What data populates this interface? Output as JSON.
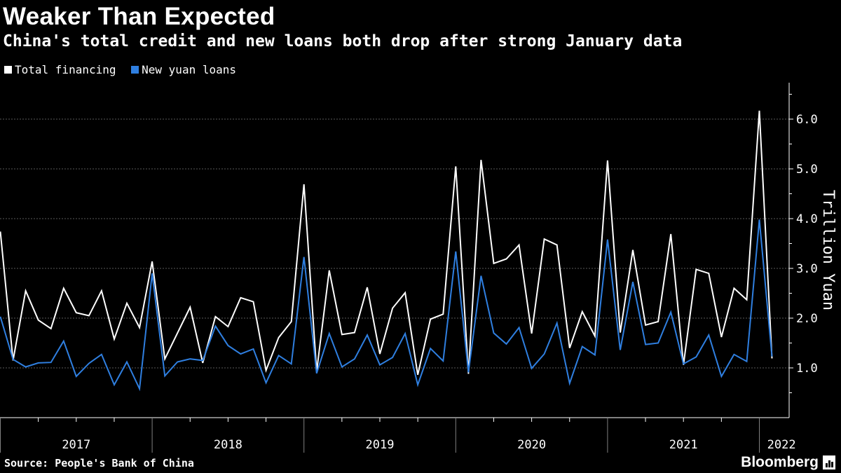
{
  "header": {
    "title": "Weaker Than Expected",
    "subtitle": "China's total credit and new loans both drop after strong January data"
  },
  "legend": {
    "items": [
      {
        "label": "Total financing",
        "color": "#ffffff"
      },
      {
        "label": "New yuan loans",
        "color": "#2f7fe0"
      }
    ]
  },
  "footer": {
    "source": "Source: People's Bank of China",
    "brand": "Bloomberg"
  },
  "chart_data": {
    "type": "line",
    "title": "Weaker Than Expected",
    "subtitle": "China's total credit and new loans both drop after strong January data",
    "xlabel": "",
    "ylabel": "Trillion Yuan",
    "ylim": [
      0,
      6.7
    ],
    "yticks": [
      1.0,
      2.0,
      3.0,
      4.0,
      5.0,
      6.0
    ],
    "ytick_labels": [
      "1.0",
      "2.0",
      "3.0",
      "4.0",
      "5.0",
      "6.0"
    ],
    "y_axis_position": "right",
    "grid": true,
    "legend_position": "top-left",
    "x_start": "2017-01",
    "x_end": "2022-02",
    "x_period": "monthly",
    "year_labels": [
      "2017",
      "2018",
      "2019",
      "2020",
      "2021",
      "2022"
    ],
    "series": [
      {
        "name": "Total financing",
        "color": "#ffffff",
        "values": [
          3.74,
          1.15,
          2.55,
          1.96,
          1.79,
          2.6,
          2.11,
          2.05,
          2.55,
          1.58,
          2.3,
          1.81,
          3.14,
          1.18,
          1.7,
          2.22,
          1.1,
          2.03,
          1.83,
          2.41,
          2.33,
          0.95,
          1.61,
          1.93,
          4.69,
          0.93,
          2.96,
          1.67,
          1.71,
          2.62,
          1.28,
          2.2,
          2.51,
          0.86,
          1.98,
          2.08,
          5.05,
          0.88,
          5.18,
          3.1,
          3.19,
          3.47,
          1.69,
          3.59,
          3.47,
          1.4,
          2.13,
          1.64,
          5.17,
          1.71,
          3.37,
          1.86,
          1.93,
          3.69,
          1.06,
          2.98,
          2.9,
          1.62,
          2.6,
          2.37,
          6.17,
          1.19
        ]
      },
      {
        "name": "New yuan loans",
        "color": "#2f7fe0",
        "values": [
          2.03,
          1.17,
          1.02,
          1.1,
          1.11,
          1.54,
          0.83,
          1.09,
          1.27,
          0.66,
          1.12,
          0.58,
          2.9,
          0.84,
          1.12,
          1.18,
          1.15,
          1.84,
          1.45,
          1.28,
          1.38,
          0.7,
          1.25,
          1.08,
          3.23,
          0.89,
          1.69,
          1.02,
          1.18,
          1.66,
          1.06,
          1.21,
          1.69,
          0.66,
          1.39,
          1.14,
          3.34,
          0.91,
          2.85,
          1.7,
          1.48,
          1.81,
          0.99,
          1.28,
          1.9,
          0.69,
          1.43,
          1.26,
          3.58,
          1.36,
          2.73,
          1.47,
          1.5,
          2.12,
          1.08,
          1.22,
          1.66,
          0.83,
          1.27,
          1.13,
          3.98,
          1.23
        ]
      }
    ]
  }
}
